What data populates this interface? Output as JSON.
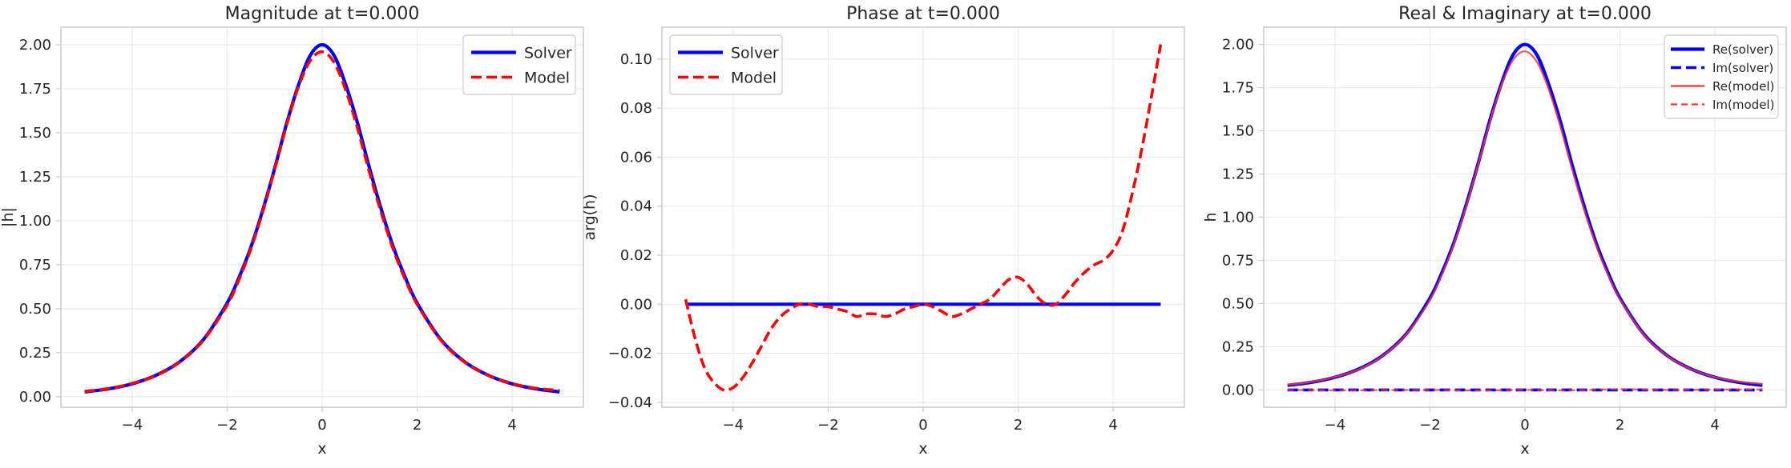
{
  "chart_data": [
    {
      "type": "line",
      "title": "Magnitude at t=0.000",
      "xlabel": "x",
      "ylabel": "|h|",
      "xlim": [
        -5.5,
        5.5
      ],
      "ylim": [
        -0.06,
        2.1
      ],
      "xticks": [
        -4,
        -2,
        0,
        2,
        4
      ],
      "yticks": [
        0.0,
        0.25,
        0.5,
        0.75,
        1.0,
        1.25,
        1.5,
        1.75,
        2.0
      ],
      "ytick_labels": [
        "0.00",
        "0.25",
        "0.50",
        "0.75",
        "1.00",
        "1.25",
        "1.50",
        "1.75",
        "2.00"
      ],
      "grid": true,
      "legend": "top-right",
      "series": [
        {
          "name": "Solver",
          "color": "#0000ff",
          "style": "solid",
          "x": [
            -5,
            -4.5,
            -4,
            -3.5,
            -3,
            -2.5,
            -2,
            -1.75,
            -1.5,
            -1.25,
            -1,
            -0.75,
            -0.5,
            -0.25,
            0,
            0.25,
            0.5,
            0.75,
            1,
            1.25,
            1.5,
            1.75,
            2,
            2.5,
            3,
            3.5,
            4,
            4.5,
            5
          ],
          "y": [
            0.027,
            0.044,
            0.073,
            0.121,
            0.198,
            0.324,
            0.532,
            0.678,
            0.85,
            1.06,
            1.296,
            1.55,
            1.77,
            1.94,
            2.0,
            1.94,
            1.77,
            1.55,
            1.296,
            1.06,
            0.85,
            0.678,
            0.532,
            0.324,
            0.198,
            0.121,
            0.073,
            0.044,
            0.027
          ]
        },
        {
          "name": "Model",
          "color": "#ff0000",
          "style": "dashed",
          "x": [
            -5,
            -4.5,
            -4,
            -3.5,
            -3,
            -2.5,
            -2,
            -1.75,
            -1.5,
            -1.25,
            -1,
            -0.75,
            -0.5,
            -0.25,
            0,
            0.25,
            0.5,
            0.75,
            1,
            1.25,
            1.5,
            1.75,
            2,
            2.5,
            3,
            3.5,
            4,
            4.5,
            5
          ],
          "y": [
            0.03,
            0.046,
            0.075,
            0.119,
            0.196,
            0.32,
            0.52,
            0.665,
            0.84,
            1.05,
            1.29,
            1.54,
            1.76,
            1.91,
            1.96,
            1.9,
            1.74,
            1.52,
            1.27,
            1.04,
            0.835,
            0.665,
            0.525,
            0.32,
            0.196,
            0.12,
            0.074,
            0.048,
            0.035
          ]
        }
      ]
    },
    {
      "type": "line",
      "title": "Phase at t=0.000",
      "xlabel": "x",
      "ylabel": "arg(h)",
      "xlim": [
        -5.5,
        5.5
      ],
      "ylim": [
        -0.042,
        0.113
      ],
      "xticks": [
        -4,
        -2,
        0,
        2,
        4
      ],
      "yticks": [
        -0.04,
        -0.02,
        0.0,
        0.02,
        0.04,
        0.06,
        0.08,
        0.1
      ],
      "ytick_labels": [
        "−0.04",
        "−0.02",
        "0.00",
        "0.02",
        "0.04",
        "0.06",
        "0.08",
        "0.10"
      ],
      "grid": true,
      "legend": "top-left",
      "series": [
        {
          "name": "Solver",
          "color": "#0000ff",
          "style": "solid",
          "x": [
            -5,
            5
          ],
          "y": [
            0,
            0
          ]
        },
        {
          "name": "Model",
          "color": "#ff0000",
          "style": "dashed",
          "x": [
            -5,
            -4.8,
            -4.6,
            -4.4,
            -4.2,
            -4.0,
            -3.8,
            -3.6,
            -3.4,
            -3.2,
            -3.0,
            -2.8,
            -2.6,
            -2.4,
            -2.2,
            -2.0,
            -1.8,
            -1.6,
            -1.4,
            -1.2,
            -1.0,
            -0.8,
            -0.6,
            -0.4,
            -0.2,
            0.0,
            0.2,
            0.4,
            0.6,
            0.8,
            1.0,
            1.2,
            1.4,
            1.6,
            1.8,
            2.0,
            2.2,
            2.4,
            2.6,
            2.8,
            3.0,
            3.2,
            3.4,
            3.6,
            3.8,
            4.0,
            4.2,
            4.4,
            4.6,
            4.8,
            5.0
          ],
          "y": [
            0.002,
            -0.014,
            -0.026,
            -0.032,
            -0.035,
            -0.034,
            -0.03,
            -0.024,
            -0.017,
            -0.01,
            -0.005,
            -0.002,
            0.0,
            0.0,
            -0.001,
            -0.001,
            -0.002,
            -0.003,
            -0.005,
            -0.004,
            -0.004,
            -0.005,
            -0.004,
            -0.002,
            -0.001,
            0.0,
            -0.001,
            -0.003,
            -0.005,
            -0.004,
            -0.002,
            0.0,
            0.002,
            0.006,
            0.01,
            0.011,
            0.008,
            0.003,
            0.0,
            0.0,
            0.004,
            0.009,
            0.013,
            0.016,
            0.018,
            0.022,
            0.03,
            0.045,
            0.063,
            0.084,
            0.106
          ]
        }
      ]
    },
    {
      "type": "line",
      "title": "Real & Imaginary at t=0.000",
      "xlabel": "x",
      "ylabel": "h",
      "xlim": [
        -5.5,
        5.5
      ],
      "ylim": [
        -0.1,
        2.1
      ],
      "xticks": [
        -4,
        -2,
        0,
        2,
        4
      ],
      "yticks": [
        0.0,
        0.25,
        0.5,
        0.75,
        1.0,
        1.25,
        1.5,
        1.75,
        2.0
      ],
      "ytick_labels": [
        "0.00",
        "0.25",
        "0.50",
        "0.75",
        "1.00",
        "1.25",
        "1.50",
        "1.75",
        "2.00"
      ],
      "grid": true,
      "legend": "top-right",
      "series": [
        {
          "name": "Re(solver)",
          "color": "#0000ff",
          "style": "solid",
          "x": [
            -5,
            -4.5,
            -4,
            -3.5,
            -3,
            -2.5,
            -2,
            -1.75,
            -1.5,
            -1.25,
            -1,
            -0.75,
            -0.5,
            -0.25,
            0,
            0.25,
            0.5,
            0.75,
            1,
            1.25,
            1.5,
            1.75,
            2,
            2.5,
            3,
            3.5,
            4,
            4.5,
            5
          ],
          "y": [
            0.027,
            0.044,
            0.073,
            0.121,
            0.198,
            0.324,
            0.532,
            0.678,
            0.85,
            1.06,
            1.296,
            1.55,
            1.77,
            1.94,
            2.0,
            1.94,
            1.77,
            1.55,
            1.296,
            1.06,
            0.85,
            0.678,
            0.532,
            0.324,
            0.198,
            0.121,
            0.073,
            0.044,
            0.027
          ]
        },
        {
          "name": "Im(solver)",
          "color": "#0000ff",
          "style": "dashed",
          "x": [
            -5,
            5
          ],
          "y": [
            0,
            0
          ]
        },
        {
          "name": "Re(model)",
          "color": "#ff3333",
          "style": "solid-thin",
          "x": [
            -5,
            -4.5,
            -4,
            -3.5,
            -3,
            -2.5,
            -2,
            -1.75,
            -1.5,
            -1.25,
            -1,
            -0.75,
            -0.5,
            -0.25,
            0,
            0.25,
            0.5,
            0.75,
            1,
            1.25,
            1.5,
            1.75,
            2,
            2.5,
            3,
            3.5,
            4,
            4.5,
            5
          ],
          "y": [
            0.03,
            0.046,
            0.075,
            0.119,
            0.196,
            0.32,
            0.52,
            0.665,
            0.84,
            1.05,
            1.29,
            1.54,
            1.76,
            1.91,
            1.96,
            1.9,
            1.74,
            1.52,
            1.27,
            1.04,
            0.835,
            0.665,
            0.525,
            0.32,
            0.196,
            0.12,
            0.074,
            0.048,
            0.035
          ]
        },
        {
          "name": "Im(model)",
          "color": "#ff3333",
          "style": "dashed-thin",
          "x": [
            -5,
            -4,
            -3,
            -2,
            -1,
            0,
            1,
            2,
            3,
            4,
            5
          ],
          "y": [
            0.0,
            -0.002,
            -0.001,
            0.0,
            -0.003,
            0.0,
            -0.002,
            0.004,
            0.0,
            0.002,
            0.003
          ]
        }
      ]
    }
  ]
}
